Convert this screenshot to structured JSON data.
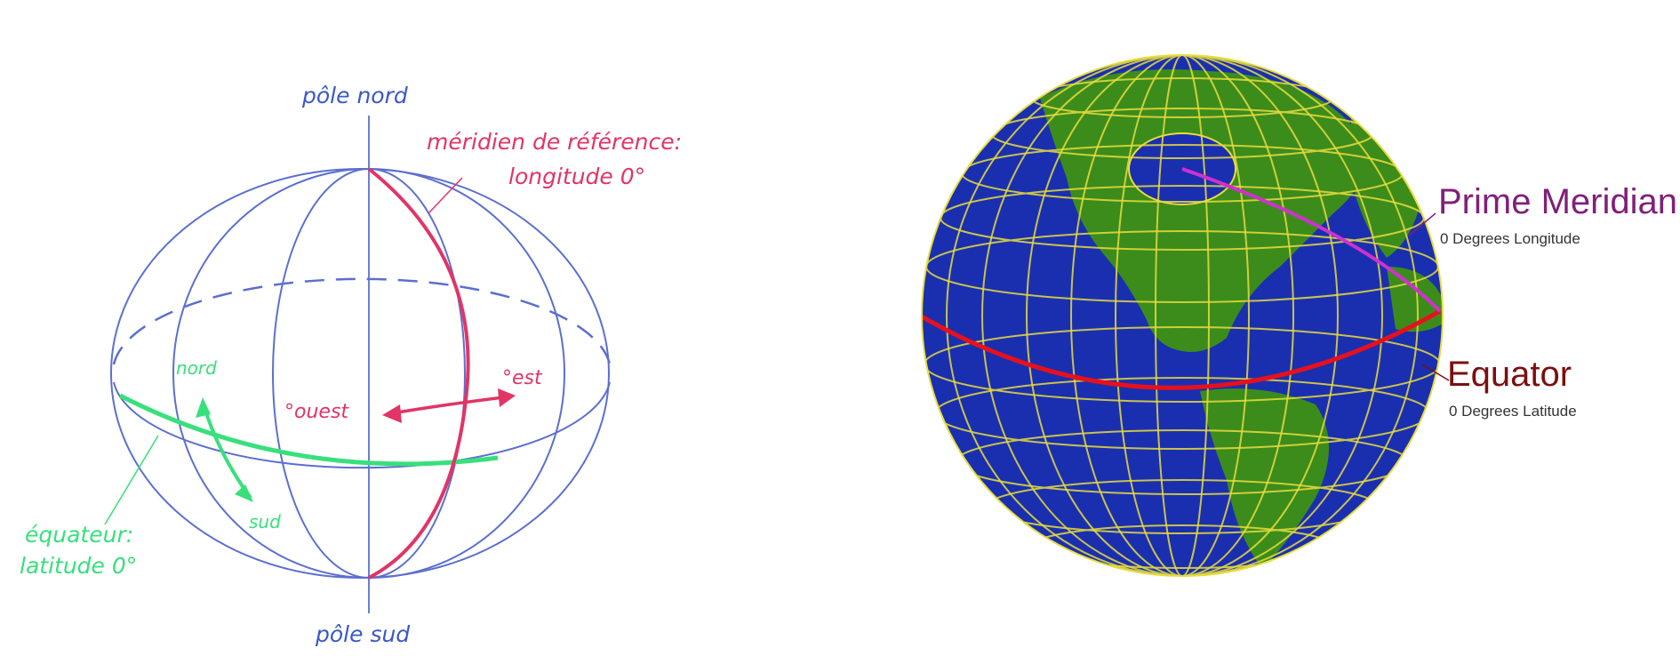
{
  "left_diagram": {
    "north_pole": "pôle nord",
    "south_pole": "pôle sud",
    "reference_meridian_line1": "méridien de référence:",
    "reference_meridian_line2": "longitude 0°",
    "equator_line1": "équateur:",
    "equator_line2": "latitude 0°",
    "north": "nord",
    "south": "sud",
    "west": "°ouest",
    "east": "°est"
  },
  "right_diagram": {
    "prime_meridian_title": "Prime Meridian",
    "prime_meridian_sub": "0 Degrees Longitude",
    "equator_title": "Equator",
    "equator_sub": "0 Degrees Latitude"
  },
  "colors": {
    "blue_lines": "#5c6fd0",
    "meridian_red": "#e03566",
    "equator_green": "#38e07c",
    "ocean": "#1a2fb0",
    "land": "#3c8c1c",
    "grid_yellow": "#e8dc3c",
    "globe_equator": "#e8101c",
    "globe_meridian": "#d030d0",
    "label_purple": "#80207a",
    "label_darkred": "#7a1010"
  }
}
